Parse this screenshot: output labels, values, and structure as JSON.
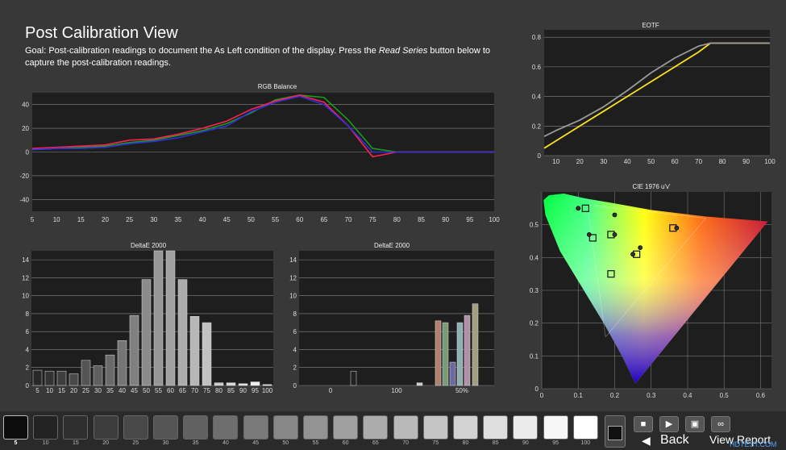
{
  "page": {
    "title": "Post Calibration View",
    "goal_prefix": "Goal: Post-calibration readings to document the As Left condition of the display. Press the ",
    "goal_italic": "Read Series",
    "goal_suffix": " button below to capture the post-calibration readings."
  },
  "colors": {
    "red": "#ff2050",
    "green": "#1a9a1a",
    "blue": "#3030e0",
    "yellow": "#ffe020",
    "gray": "#9a9a9a"
  },
  "charts": {
    "rgb_balance": {
      "title": "RGB Balance",
      "x_ticks": [
        "5",
        "10",
        "15",
        "20",
        "25",
        "30",
        "35",
        "40",
        "45",
        "50",
        "55",
        "60",
        "65",
        "70",
        "75",
        "80",
        "85",
        "90",
        "95",
        "100"
      ],
      "y_ticks": [
        "40",
        "20",
        "0",
        "-20",
        "-40"
      ]
    },
    "eotf": {
      "title": "EOTF",
      "x_ticks": [
        "10",
        "20",
        "30",
        "40",
        "50",
        "60",
        "70",
        "80",
        "90",
        "100"
      ],
      "y_ticks": [
        "0.8",
        "0.6",
        "0.4",
        "0.2",
        "0"
      ]
    },
    "deltae_gray": {
      "title": "DeltaE 2000",
      "x_ticks": [
        "5",
        "10",
        "15",
        "20",
        "25",
        "30",
        "35",
        "40",
        "45",
        "50",
        "55",
        "60",
        "65",
        "70",
        "75",
        "80",
        "85",
        "90",
        "95",
        "100"
      ],
      "y_ticks": [
        "14",
        "12",
        "10",
        "8",
        "6",
        "4",
        "2",
        "0"
      ]
    },
    "deltae_color": {
      "title": "DeltaE 2000",
      "x_ticks": [
        "0",
        "100",
        "50%"
      ],
      "y_ticks": [
        "14",
        "12",
        "10",
        "8",
        "6",
        "4",
        "2",
        "0"
      ]
    },
    "cie": {
      "title": "CIE 1976 u'v'",
      "x_ticks": [
        "0",
        "0.1",
        "0.2",
        "0.3",
        "0.4",
        "0.5",
        "0.6"
      ],
      "y_ticks": [
        "0.5",
        "0.4",
        "0.3",
        "0.2",
        "0.1",
        "0"
      ]
    }
  },
  "chart_data": [
    {
      "type": "line",
      "title": "RGB Balance",
      "x": [
        5,
        10,
        15,
        20,
        25,
        30,
        35,
        40,
        45,
        50,
        55,
        60,
        65,
        70,
        75,
        80,
        85,
        90,
        95,
        100
      ],
      "ylim": [
        -50,
        50
      ],
      "series": [
        {
          "values": [
            2,
            3,
            4,
            5,
            8,
            10,
            14,
            18,
            24,
            33,
            44,
            48,
            46,
            27,
            3,
            0,
            0,
            0,
            0,
            0
          ]
        },
        {
          "values": [
            3,
            4,
            5,
            6,
            10,
            11,
            15,
            20,
            26,
            36,
            43,
            48,
            42,
            22,
            -4,
            0,
            0,
            0,
            0,
            0
          ]
        },
        {
          "values": [
            2,
            3,
            3,
            4,
            7,
            9,
            12,
            17,
            22,
            34,
            42,
            47,
            40,
            22,
            0,
            0,
            0,
            0,
            0,
            0
          ]
        }
      ]
    },
    {
      "type": "line",
      "title": "EOTF",
      "x": [
        5,
        10,
        20,
        30,
        40,
        50,
        60,
        70,
        75,
        80,
        90,
        100
      ],
      "ylim": [
        0,
        0.85
      ],
      "series": [
        {
          "values": [
            0.05,
            0.1,
            0.2,
            0.3,
            0.4,
            0.5,
            0.6,
            0.7,
            0.76,
            0.76,
            0.76,
            0.76
          ]
        },
        {
          "values": [
            0.13,
            0.17,
            0.24,
            0.33,
            0.44,
            0.56,
            0.66,
            0.74,
            0.76,
            0.76,
            0.76,
            0.76
          ]
        }
      ]
    },
    {
      "type": "bar",
      "title": "DeltaE 2000",
      "categories": [
        "5",
        "10",
        "15",
        "20",
        "25",
        "30",
        "35",
        "40",
        "45",
        "50",
        "55",
        "60",
        "65",
        "70",
        "75",
        "80",
        "85",
        "90",
        "95",
        "100"
      ],
      "values": [
        1.7,
        1.6,
        1.6,
        1.3,
        2.8,
        2.2,
        3.4,
        5.0,
        7.8,
        11.8,
        15.0,
        15.0,
        11.8,
        7.7,
        7.0,
        0.3,
        0.3,
        0.2,
        0.4,
        0.1
      ],
      "ylim": [
        0,
        15
      ]
    },
    {
      "type": "bar",
      "title": "DeltaE 2000",
      "values": [
        1.6,
        0.3,
        7.2,
        7.0,
        2.6,
        7.0,
        7.8,
        9.1
      ],
      "ylim": [
        0,
        15
      ]
    },
    {
      "type": "scatter",
      "title": "CIE 1976 u'v'",
      "xlim": [
        0,
        0.63
      ],
      "ylim": [
        0,
        0.6
      ],
      "gamut_triangle": [
        [
          0.45,
          0.52
        ],
        [
          0.125,
          0.56
        ],
        [
          0.175,
          0.158
        ]
      ],
      "targets": [
        [
          0.12,
          0.55
        ],
        [
          0.14,
          0.46
        ],
        [
          0.19,
          0.47
        ],
        [
          0.19,
          0.35
        ],
        [
          0.26,
          0.41
        ],
        [
          0.36,
          0.49
        ]
      ],
      "measured": [
        [
          0.1,
          0.55
        ],
        [
          0.13,
          0.47
        ],
        [
          0.2,
          0.47
        ],
        [
          0.2,
          0.53
        ],
        [
          0.27,
          0.43
        ],
        [
          0.37,
          0.49
        ],
        [
          0.25,
          0.41
        ]
      ]
    }
  ],
  "bottombar": {
    "swatch_first_label": "5",
    "swatch_labels": [
      "10",
      "15",
      "20",
      "25",
      "30",
      "35",
      "40",
      "45",
      "50",
      "55",
      "60",
      "65",
      "70",
      "75",
      "80",
      "85",
      "90",
      "95",
      "100"
    ],
    "back_label": "Back",
    "view_label": "View Report",
    "watermark": "HDTEST.COM"
  }
}
